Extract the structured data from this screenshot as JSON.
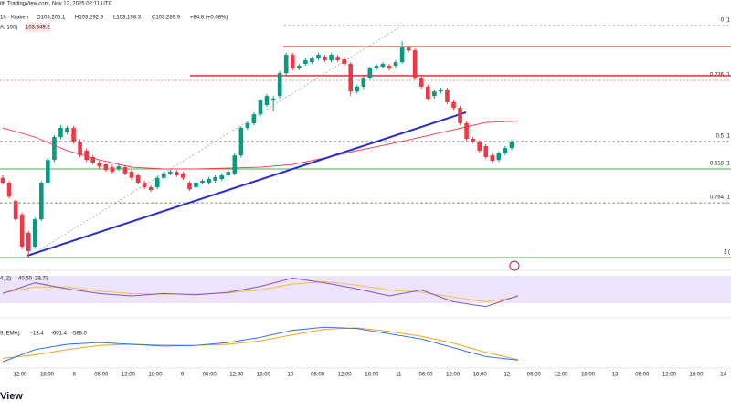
{
  "header": {
    "source": "ith TradingView.com, Nov 12, 2025 02:11 UTC",
    "symbol": "1h · Kraken",
    "ohlc": [
      "O103,205.1",
      "H103,292.9",
      "L103,198.3",
      "C103,289.9"
    ],
    "change": "+84.8 (+0.08%)",
    "ma_label": "A, 100)",
    "ma_value": "103,849.2"
  },
  "chart_data": {
    "type": "candlestick",
    "ylim": [
      98580,
      108150
    ],
    "up_color": "#089981",
    "down_color": "#f23645",
    "candles": [
      [
        101830,
        101920,
        101600,
        101660
      ],
      [
        101660,
        101720,
        101100,
        101170
      ],
      [
        101010,
        101060,
        100300,
        100360
      ],
      [
        100530,
        100600,
        99300,
        99390
      ],
      [
        99880,
        99950,
        99000,
        99230
      ],
      [
        99390,
        100420,
        99300,
        100360
      ],
      [
        100360,
        101720,
        100300,
        101660
      ],
      [
        101660,
        102540,
        101600,
        102470
      ],
      [
        102470,
        103350,
        102400,
        103280
      ],
      [
        103280,
        103700,
        103200,
        103610
      ],
      [
        103450,
        103670,
        103380,
        103610
      ],
      [
        103610,
        103670,
        103050,
        103120
      ],
      [
        103120,
        103200,
        102560,
        102630
      ],
      [
        102800,
        102880,
        102400,
        102470
      ],
      [
        102570,
        102640,
        102300,
        102370
      ],
      [
        102370,
        102440,
        102150,
        102240
      ],
      [
        102310,
        102380,
        102050,
        102110
      ],
      [
        102210,
        102300,
        101990,
        102050
      ],
      [
        102150,
        102310,
        102080,
        102240
      ],
      [
        102210,
        102280,
        101920,
        101990
      ],
      [
        102050,
        102120,
        101760,
        101830
      ],
      [
        101920,
        101990,
        101600,
        101660
      ],
      [
        101660,
        101720,
        101430,
        101500
      ],
      [
        101500,
        101560,
        101330,
        101400
      ],
      [
        101500,
        101900,
        101430,
        101830
      ],
      [
        101830,
        102050,
        101760,
        101990
      ],
      [
        101990,
        102120,
        101920,
        102050
      ],
      [
        102050,
        102110,
        101860,
        101920
      ],
      [
        101990,
        102050,
        101760,
        101830
      ],
      [
        101660,
        101720,
        101370,
        101430
      ],
      [
        101500,
        101720,
        101430,
        101660
      ],
      [
        101660,
        101790,
        101600,
        101730
      ],
      [
        101660,
        101860,
        101600,
        101790
      ],
      [
        101730,
        101920,
        101660,
        101860
      ],
      [
        101790,
        101990,
        101730,
        101920
      ],
      [
        101920,
        102120,
        101860,
        102050
      ],
      [
        101990,
        102700,
        101920,
        102630
      ],
      [
        102630,
        103670,
        102560,
        103610
      ],
      [
        103610,
        103840,
        103540,
        103770
      ],
      [
        103770,
        104160,
        103700,
        104090
      ],
      [
        104090,
        104650,
        104020,
        104580
      ],
      [
        104420,
        104810,
        104350,
        104740
      ],
      [
        104580,
        104740,
        104200,
        104650
      ],
      [
        104740,
        105620,
        104650,
        105550
      ],
      [
        105550,
        106270,
        105480,
        106200
      ],
      [
        106200,
        106270,
        105650,
        105720
      ],
      [
        105720,
        105880,
        105650,
        105810
      ],
      [
        105880,
        106070,
        105810,
        106010
      ],
      [
        105940,
        106140,
        105880,
        106070
      ],
      [
        106070,
        106270,
        106010,
        106200
      ],
      [
        106140,
        106200,
        105940,
        106010
      ],
      [
        106010,
        106270,
        105940,
        106200
      ],
      [
        106140,
        106200,
        105940,
        106010
      ],
      [
        106040,
        106140,
        105810,
        105880
      ],
      [
        105880,
        105940,
        104740,
        104900
      ],
      [
        104900,
        105140,
        104830,
        105070
      ],
      [
        105070,
        105460,
        105000,
        105390
      ],
      [
        105390,
        105780,
        105320,
        105720
      ],
      [
        105720,
        105880,
        105650,
        105810
      ],
      [
        105780,
        105940,
        105720,
        105880
      ],
      [
        105810,
        105880,
        105650,
        105720
      ],
      [
        105810,
        106010,
        105720,
        105940
      ],
      [
        105940,
        106690,
        105880,
        106460
      ],
      [
        106460,
        106530,
        106290,
        106360
      ],
      [
        106360,
        106430,
        105320,
        105390
      ],
      [
        105390,
        105460,
        105000,
        105070
      ],
      [
        105070,
        105140,
        104580,
        104650
      ],
      [
        104740,
        104970,
        104650,
        104900
      ],
      [
        104900,
        105040,
        104830,
        104970
      ],
      [
        104970,
        105040,
        104450,
        104520
      ],
      [
        104520,
        104580,
        104260,
        104320
      ],
      [
        104320,
        104390,
        103700,
        103770
      ],
      [
        103770,
        103840,
        103150,
        103220
      ],
      [
        103220,
        103280,
        103050,
        103120
      ],
      [
        103120,
        103180,
        102730,
        102800
      ],
      [
        102960,
        103030,
        102500,
        102570
      ],
      [
        102630,
        102700,
        102370,
        102440
      ],
      [
        102470,
        102770,
        102400,
        102700
      ],
      [
        102700,
        102960,
        102630,
        102890
      ],
      [
        102890,
        103180,
        102830,
        103120
      ]
    ],
    "sma": {
      "color": "#f23645",
      "values": [
        103610,
        103280,
        102800,
        102470,
        102210,
        102150,
        102150,
        102180,
        102210,
        102310,
        102540,
        102800,
        103030,
        103280,
        103540,
        103800,
        103850
      ]
    },
    "fib": {
      "high": 107240,
      "low": 99000,
      "levels": [
        {
          "value": 0,
          "label": "0 (1"
        },
        {
          "value": 0.236,
          "label": "0.236 (1"
        },
        {
          "value": 0.5,
          "label": "0.5 (1"
        },
        {
          "value": 0.618,
          "label": "0.618 (1"
        },
        {
          "value": 0.764,
          "label": "0.764 (1"
        },
        {
          "value": 1,
          "label": "1 ("
        }
      ],
      "colors": [
        "#9e9e9e",
        "#e57373",
        "#555555",
        "#4caf50",
        "#6b6b1f",
        "#4caf50"
      ]
    },
    "resistance": [
      106490,
      105460
    ],
    "trendline": [
      99070,
      104160
    ],
    "time_labels": [
      "12:00",
      "18:00",
      "8",
      "06:00",
      "12:00",
      "18:00",
      "9",
      "06:00",
      "12:00",
      "18:00",
      "10",
      "06:00",
      "12:00",
      "18:00",
      "11",
      "06:00",
      "12:00",
      "18:00",
      "12",
      "06:00",
      "12:00",
      "18:00",
      "13",
      "06:00",
      "12:00",
      "18:00",
      "14"
    ]
  },
  "rsi": {
    "label": "4, 2)",
    "values_text": [
      "40.50",
      "38.73"
    ],
    "lim": [
      0,
      100
    ],
    "rsi": {
      "color": "#7e57c2",
      "values": [
        44,
        62,
        52,
        44,
        40,
        44,
        42,
        46,
        56,
        70,
        62,
        52,
        40,
        50,
        30,
        22,
        40.5
      ]
    },
    "signal": {
      "color": "#f5b942",
      "values": [
        45,
        55,
        55,
        48,
        44,
        43,
        43,
        45,
        50,
        60,
        64,
        58,
        50,
        46,
        38,
        30,
        38.73
      ]
    }
  },
  "macd": {
    "label": "9, EMA)",
    "values_text": [
      "-13.4",
      "-601.4",
      "-588.0"
    ],
    "lim": [
      -800,
      500
    ],
    "macd": {
      "color": "#2962ff",
      "values": [
        -650,
        -300,
        -150,
        -100,
        -150,
        -200,
        -180,
        -100,
        50,
        250,
        340,
        300,
        150,
        0,
        -250,
        -500,
        -601.4
      ]
    },
    "signal": {
      "color": "#ff9800",
      "values": [
        -550,
        -450,
        -300,
        -180,
        -150,
        -170,
        -180,
        -150,
        -50,
        120,
        280,
        320,
        220,
        80,
        -120,
        -380,
        -588.0
      ]
    }
  },
  "footer": "View"
}
